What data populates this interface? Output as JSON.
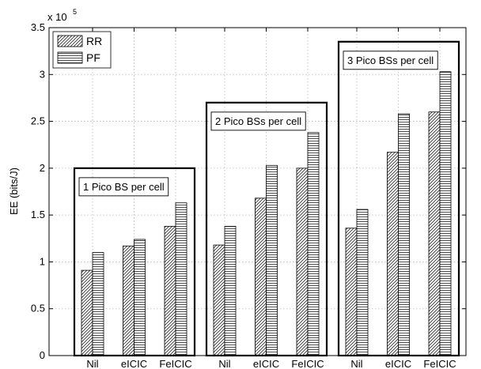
{
  "chart_data": {
    "type": "bar",
    "categories": [
      "Nil",
      "eICIC",
      "FeICIC",
      "Nil",
      "eICIC",
      "FeICIC",
      "Nil",
      "eICIC",
      "FeICIC"
    ],
    "series": [
      {
        "name": "RR",
        "values": [
          91000,
          117000,
          138000,
          118000,
          168000,
          200000,
          136000,
          217000,
          260000
        ]
      },
      {
        "name": "PF",
        "values": [
          110000,
          124000,
          163000,
          138000,
          203000,
          238000,
          156000,
          258000,
          303000
        ]
      }
    ],
    "groups": [
      {
        "label": "1 Pico BS per cell",
        "indices": [
          0,
          1,
          2
        ],
        "box_top": 200000
      },
      {
        "label": "2 Pico BSs per cell",
        "indices": [
          3,
          4,
          5
        ],
        "box_top": 270000
      },
      {
        "label": "3 Pico BSs per cell",
        "indices": [
          6,
          7,
          8
        ],
        "box_top": 335000
      }
    ],
    "title": "",
    "xlabel": "",
    "ylabel": "EE (bits/J)",
    "y_exponent_label": "x 10",
    "y_exponent": "5",
    "ylim": [
      0,
      350000
    ],
    "yticks": [
      0,
      50000,
      100000,
      150000,
      200000,
      250000,
      300000,
      350000
    ],
    "ytick_labels": [
      "0",
      "0.5",
      "1",
      "1.5",
      "2",
      "2.5",
      "3",
      "3.5"
    ],
    "grid": true,
    "legend_placement": "top-left",
    "colors": {
      "bar_fill": "#ffffff",
      "hatch": "#000000",
      "grid": "#b8b8b8",
      "frame": "#000000"
    }
  }
}
